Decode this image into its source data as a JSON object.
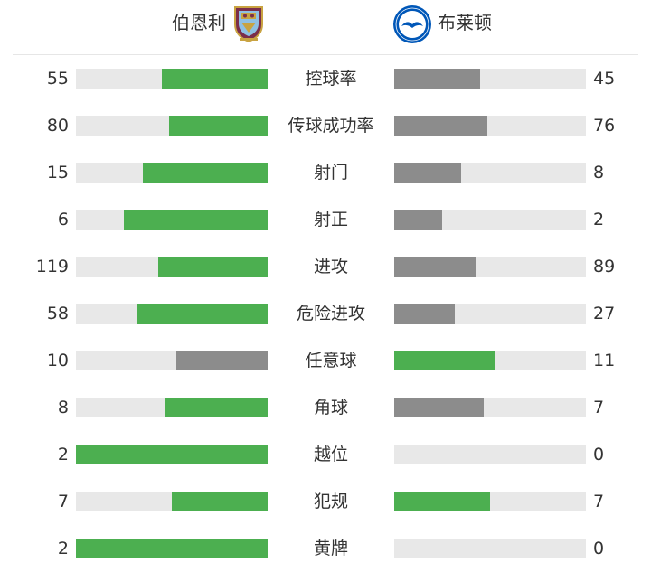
{
  "header": {
    "home_team": "伯恩利",
    "away_team": "布莱顿"
  },
  "colors": {
    "leader": "#4caf50",
    "trailer": "#8c8c8c",
    "track": "#e8e8e8"
  },
  "stats": [
    {
      "label": "控球率",
      "home": 55,
      "away": 45
    },
    {
      "label": "传球成功率",
      "home": 80,
      "away": 76
    },
    {
      "label": "射门",
      "home": 15,
      "away": 8
    },
    {
      "label": "射正",
      "home": 6,
      "away": 2
    },
    {
      "label": "进攻",
      "home": 119,
      "away": 89
    },
    {
      "label": "危险进攻",
      "home": 58,
      "away": 27
    },
    {
      "label": "任意球",
      "home": 10,
      "away": 11
    },
    {
      "label": "角球",
      "home": 8,
      "away": 7
    },
    {
      "label": "越位",
      "home": 2,
      "away": 0
    },
    {
      "label": "犯规",
      "home": 7,
      "away": 7
    },
    {
      "label": "黄牌",
      "home": 2,
      "away": 0
    }
  ]
}
